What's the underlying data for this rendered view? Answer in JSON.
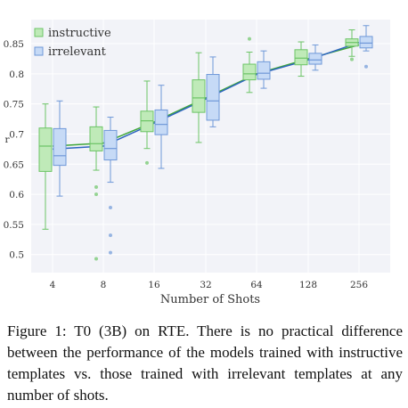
{
  "chart_data": {
    "type": "box",
    "xlabel": "Number of Shots",
    "ylabel": "r",
    "x_scale": "log2",
    "categories": [
      "4",
      "8",
      "16",
      "32",
      "64",
      "128",
      "256"
    ],
    "ylim": [
      0.47,
      0.89
    ],
    "yticks": [
      "0.5",
      "0.55",
      "0.6",
      "0.65",
      "0.7",
      "0.75",
      "0.8",
      "0.85"
    ],
    "legend_position": "top-left",
    "series": [
      {
        "name": "instructive",
        "fill": "#bfeab8",
        "stroke": "#6cc466",
        "line_color": "#3fa63a",
        "means": [
          0.68,
          0.685,
          0.72,
          0.76,
          0.8,
          0.825,
          0.848
        ],
        "boxes": [
          {
            "min": 0.542,
            "q1": 0.638,
            "median": 0.68,
            "q3": 0.71,
            "max": 0.75,
            "outliers": []
          },
          {
            "min": 0.64,
            "q1": 0.672,
            "median": 0.684,
            "q3": 0.712,
            "max": 0.745,
            "outliers": [
              0.612,
              0.6,
              0.493
            ]
          },
          {
            "min": 0.676,
            "q1": 0.704,
            "median": 0.722,
            "q3": 0.738,
            "max": 0.788,
            "outliers": [
              0.652
            ]
          },
          {
            "min": 0.686,
            "q1": 0.736,
            "median": 0.76,
            "q3": 0.79,
            "max": 0.835,
            "outliers": []
          },
          {
            "min": 0.769,
            "q1": 0.79,
            "median": 0.8,
            "q3": 0.816,
            "max": 0.836,
            "outliers": [
              0.858
            ]
          },
          {
            "min": 0.796,
            "q1": 0.815,
            "median": 0.826,
            "q3": 0.84,
            "max": 0.853,
            "outliers": []
          },
          {
            "min": 0.829,
            "q1": 0.846,
            "median": 0.852,
            "q3": 0.858,
            "max": 0.873,
            "outliers": [
              0.824
            ]
          }
        ]
      },
      {
        "name": "irrelevant",
        "fill": "#c6daf6",
        "stroke": "#6f98d8",
        "line_color": "#2d64c0",
        "means": [
          0.675,
          0.68,
          0.718,
          0.758,
          0.799,
          0.823,
          0.852
        ],
        "boxes": [
          {
            "min": 0.597,
            "q1": 0.648,
            "median": 0.664,
            "q3": 0.709,
            "max": 0.755,
            "outliers": []
          },
          {
            "min": 0.62,
            "q1": 0.657,
            "median": 0.676,
            "q3": 0.706,
            "max": 0.728,
            "outliers": [
              0.578,
              0.532,
              0.503
            ]
          },
          {
            "min": 0.643,
            "q1": 0.699,
            "median": 0.716,
            "q3": 0.74,
            "max": 0.781,
            "outliers": []
          },
          {
            "min": 0.712,
            "q1": 0.723,
            "median": 0.755,
            "q3": 0.799,
            "max": 0.828,
            "outliers": []
          },
          {
            "min": 0.776,
            "q1": 0.791,
            "median": 0.801,
            "q3": 0.82,
            "max": 0.838,
            "outliers": []
          },
          {
            "min": 0.806,
            "q1": 0.816,
            "median": 0.823,
            "q3": 0.834,
            "max": 0.848,
            "outliers": []
          },
          {
            "min": 0.838,
            "q1": 0.843,
            "median": 0.851,
            "q3": 0.862,
            "max": 0.88,
            "outliers": [
              0.812
            ]
          }
        ]
      }
    ]
  },
  "caption": "Figure 1: T0 (3B) on RTE. There is no practical difference between the performance of the models trained with instructive templates vs. those trained with irrelevant templates at any number of shots."
}
